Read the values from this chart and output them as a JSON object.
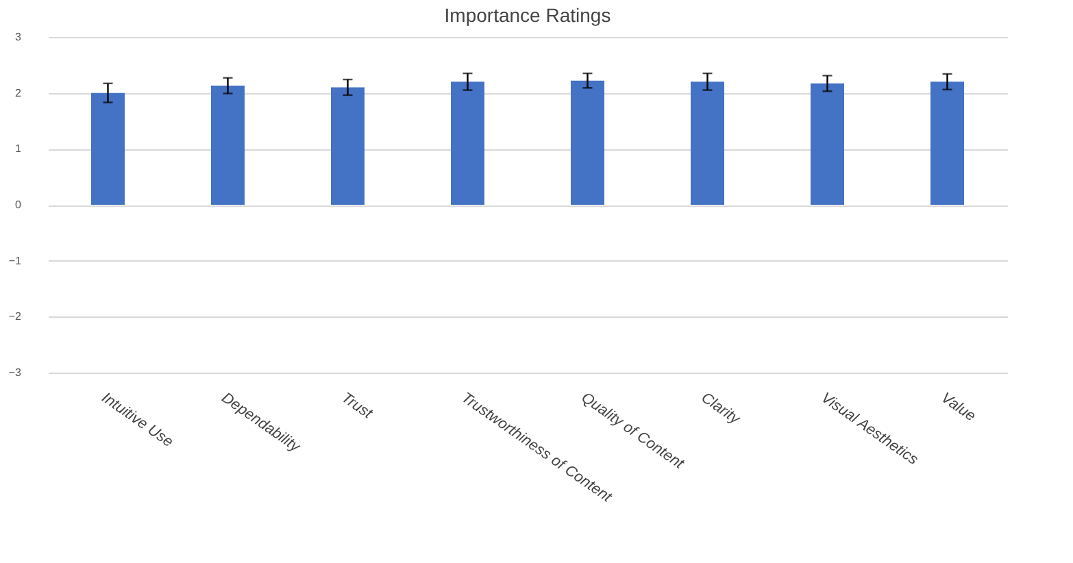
{
  "chart_data": {
    "type": "bar",
    "title": "Importance Ratings",
    "categories": [
      "Intuitive Use",
      "Dependability",
      "Trust",
      "Trustworthiness of Content",
      "Quality of Content",
      "Clarity",
      "Visual Aesthetics",
      "Value"
    ],
    "values": [
      2.0,
      2.13,
      2.1,
      2.2,
      2.22,
      2.2,
      2.17,
      2.2
    ],
    "errors": [
      0.17,
      0.14,
      0.14,
      0.15,
      0.13,
      0.15,
      0.14,
      0.14
    ],
    "color": "#4472c4",
    "ylim": [
      -3,
      3
    ],
    "yticks": [
      -3,
      -2,
      -1,
      0,
      1,
      2,
      3
    ],
    "grid": "y"
  }
}
